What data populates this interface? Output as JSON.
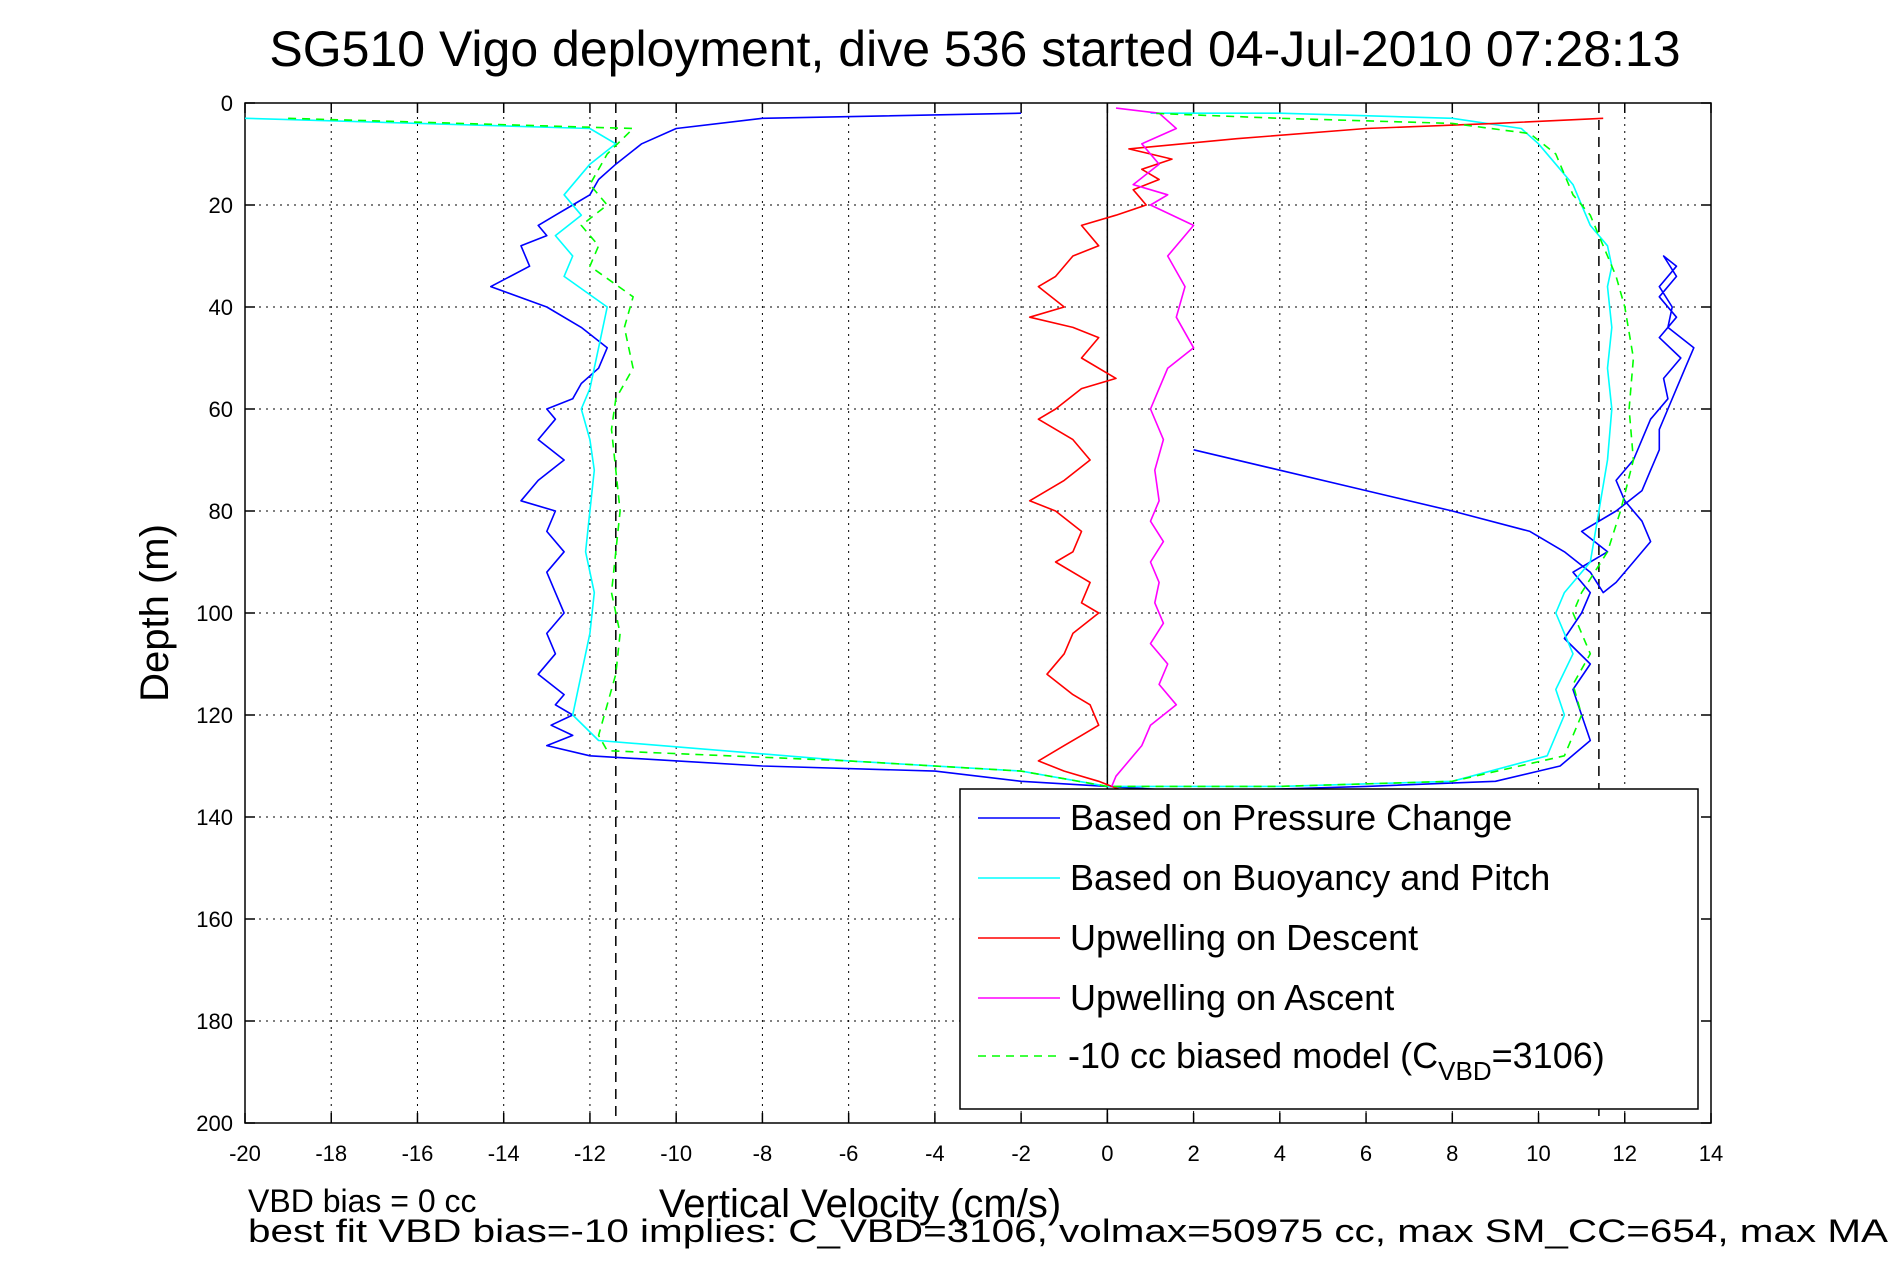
{
  "chart_data": {
    "type": "line",
    "title": "SG510 Vigo deployment, dive 536 started 04-Jul-2010 07:28:13",
    "xlabel": "Vertical Velocity (cm/s)",
    "ylabel": "Depth (m)",
    "xlim": [
      -20,
      14
    ],
    "ylim": [
      0,
      200
    ],
    "y_reversed": true,
    "grid": true,
    "legend_position": "bottom-right",
    "xticks": [
      "-20",
      "-18",
      "-16",
      "-14",
      "-12",
      "-10",
      "-8",
      "-6",
      "-4",
      "-2",
      "0",
      "2",
      "4",
      "6",
      "8",
      "10",
      "12",
      "14"
    ],
    "yticks": [
      "0",
      "20",
      "40",
      "60",
      "80",
      "100",
      "120",
      "140",
      "160",
      "180",
      "200"
    ],
    "reference_lines": {
      "vertical_solid_x": 0,
      "vertical_dashed_x": [
        -11.4,
        11.4
      ],
      "dashed_color": "#000000"
    },
    "series": [
      {
        "name": "Based on Pressure Change",
        "color": "#0000ff",
        "style": "solid",
        "x": [
          -2,
          -8,
          -10,
          -10.8,
          -11.4,
          -11.8,
          -12.0,
          -12.4,
          -12.8,
          -13.2,
          -13.0,
          -13.6,
          -13.4,
          -14.3,
          -13.0,
          -12.2,
          -11.6,
          -11.8,
          -12.2,
          -12.4,
          -13.0,
          -12.8,
          -13.2,
          -12.6,
          -13.2,
          -13.6,
          -12.8,
          -13.0,
          -12.6,
          -13.0,
          -12.8,
          -12.6,
          -13.0,
          -12.8,
          -13.2,
          -12.6,
          -12.8,
          -12.4,
          -12.9,
          -12.4,
          -13.0,
          -12.0,
          -8.0,
          -4.0,
          -2.0,
          0,
          2,
          6,
          9,
          10.5,
          11.2,
          11.0,
          10.8,
          11.2,
          10.6,
          11.0,
          11.2,
          10.8,
          11.6,
          11.0,
          11.8,
          12.4,
          12.6,
          12.8,
          12.8,
          13.0,
          13.2,
          13.4,
          13.6,
          13.0,
          13.1,
          12.8,
          13.2,
          12.9,
          13.2,
          12.8,
          13.2,
          12.8,
          13.3,
          12.9,
          13.0,
          12.6,
          12.4,
          12.2,
          11.8,
          12.0,
          12.4,
          12.6,
          12.2,
          11.8,
          11.5,
          11.2,
          10.6,
          9.8,
          8.0,
          6.0,
          4.0,
          2.0
        ],
        "y": [
          2,
          3,
          5,
          8,
          12,
          15,
          18,
          20,
          22,
          24,
          26,
          28,
          32,
          36,
          40,
          44,
          48,
          52,
          55,
          58,
          60,
          62,
          66,
          70,
          74,
          78,
          80,
          84,
          88,
          92,
          96,
          100,
          104,
          108,
          112,
          116,
          118,
          120,
          122,
          124,
          126,
          128,
          130,
          131,
          133,
          134,
          135,
          134,
          133,
          130,
          125,
          120,
          115,
          110,
          105,
          100,
          96,
          92,
          88,
          84,
          80,
          76,
          72,
          68,
          64,
          60,
          56,
          52,
          48,
          44,
          40,
          36,
          32,
          30,
          34,
          38,
          42,
          46,
          50,
          54,
          58,
          62,
          66,
          70,
          74,
          78,
          82,
          86,
          90,
          94,
          96,
          92,
          88,
          84,
          80,
          76,
          72,
          68
        ]
      },
      {
        "name": "Based on Buoyancy and Pitch",
        "color": "#00ffff",
        "style": "solid",
        "x": [
          -20.0,
          -12.0,
          -11.4,
          -12.0,
          -12.6,
          -12.2,
          -12.8,
          -12.4,
          -12.6,
          -11.6,
          -11.8,
          -12.0,
          -12.2,
          -12.0,
          -11.9,
          -12.0,
          -12.1,
          -11.9,
          -12.0,
          -12.2,
          -12.4,
          -11.8,
          -6.0,
          -2.0,
          0,
          4,
          8,
          10.2,
          10.6,
          10.4,
          10.8,
          10.4,
          10.6,
          11.2,
          11.4,
          11.6,
          11.7,
          11.6,
          11.7,
          11.6,
          11.7,
          11.6,
          11.2,
          11.0,
          10.8,
          10.4,
          10.0,
          9.6,
          8.0,
          4.0,
          1.0
        ],
        "y": [
          3,
          5,
          8,
          12,
          18,
          22,
          26,
          30,
          34,
          40,
          48,
          56,
          60,
          66,
          72,
          80,
          88,
          96,
          104,
          112,
          120,
          125,
          129,
          131,
          134,
          134,
          133,
          128,
          120,
          115,
          108,
          100,
          96,
          90,
          80,
          70,
          60,
          52,
          44,
          36,
          32,
          28,
          24,
          20,
          16,
          12,
          8,
          5,
          3,
          2,
          2
        ]
      },
      {
        "name": "Upwelling on Descent",
        "color": "#ff0000",
        "style": "solid",
        "x": [
          11.5,
          9.0,
          6.0,
          3.0,
          0.5,
          1.5,
          0.8,
          1.2,
          0.6,
          0.9,
          0.2,
          -0.6,
          -0.2,
          -0.8,
          -1.2,
          -1.6,
          -1.0,
          -1.8,
          -0.8,
          -0.2,
          -0.6,
          0.2,
          -0.6,
          -1.2,
          -1.6,
          -0.8,
          -0.4,
          -1.0,
          -1.8,
          -1.2,
          -0.6,
          -0.8,
          -1.2,
          -0.4,
          -0.6,
          -0.2,
          -0.8,
          -1.0,
          -1.4,
          -0.8,
          -0.4,
          -0.2,
          -0.6,
          -1.0,
          -1.6,
          -1.0,
          -0.2,
          0.4,
          0.2
        ],
        "y": [
          3,
          4,
          5,
          7,
          9,
          11,
          13,
          15,
          17,
          20,
          22,
          24,
          28,
          30,
          34,
          36,
          40,
          42,
          44,
          46,
          50,
          54,
          56,
          60,
          62,
          66,
          70,
          74,
          78,
          80,
          84,
          88,
          90,
          94,
          98,
          100,
          104,
          108,
          112,
          116,
          118,
          122,
          124,
          126,
          129,
          131,
          133,
          135,
          136
        ]
      },
      {
        "name": "Upwelling on Ascent",
        "color": "#ff00ff",
        "style": "solid",
        "x": [
          0.2,
          1.2,
          1.6,
          0.8,
          1.2,
          0.6,
          1.4,
          1.0,
          2.0,
          1.4,
          1.8,
          1.6,
          2.0,
          1.4,
          1.2,
          1.0,
          1.3,
          1.1,
          1.2,
          1.0,
          1.3,
          1.0,
          1.2,
          1.1,
          1.3,
          1.0,
          1.4,
          1.2,
          1.6,
          1.0,
          0.8,
          0.4,
          0.2,
          0.1
        ],
        "y": [
          1,
          2,
          5,
          8,
          12,
          16,
          18,
          20,
          24,
          30,
          36,
          42,
          48,
          52,
          56,
          60,
          66,
          72,
          78,
          82,
          86,
          90,
          94,
          98,
          102,
          106,
          110,
          114,
          118,
          122,
          126,
          130,
          132,
          134
        ]
      },
      {
        "name": "-10 cc biased model (C_VBD=3106)",
        "color": "#00ff00",
        "style": "dashed",
        "x": [
          -19.0,
          -11.0,
          -11.6,
          -12.0,
          -11.6,
          -12.2,
          -11.8,
          -12.0,
          -11.0,
          -11.2,
          -11.0,
          -11.4,
          -11.5,
          -11.4,
          -11.3,
          -11.4,
          -11.5,
          -11.3,
          -11.4,
          -11.6,
          -11.8,
          -11.6,
          -6.0,
          -2.0,
          0,
          4,
          8,
          10.6,
          11.0,
          10.8,
          11.2,
          10.8,
          11.0,
          11.6,
          11.9,
          12.2,
          12.1,
          12.2,
          12.0,
          11.8,
          11.6,
          11.4,
          11.2,
          10.8,
          10.6,
          10.4,
          9.8,
          8.0,
          4.0,
          1.0
        ],
        "y": [
          3,
          5,
          10,
          16,
          20,
          24,
          28,
          32,
          38,
          44,
          52,
          58,
          64,
          72,
          80,
          88,
          96,
          104,
          112,
          118,
          124,
          127,
          129,
          131,
          134,
          134,
          133,
          128,
          120,
          114,
          108,
          100,
          96,
          88,
          80,
          70,
          60,
          50,
          40,
          34,
          30,
          26,
          22,
          18,
          14,
          10,
          6,
          4,
          3,
          2
        ]
      }
    ]
  },
  "legend": {
    "items": [
      {
        "label": "Based on Pressure Change"
      },
      {
        "label": "Based on Buoyancy and Pitch"
      },
      {
        "label": "Upwelling on Descent"
      },
      {
        "label": "Upwelling on Ascent"
      },
      {
        "label_main": "-10 cc biased model (C",
        "label_sub": "VBD",
        "label_tail": "=3106)"
      }
    ]
  },
  "notes": {
    "line1": "VBD bias = 0 cc",
    "line2": "best fit VBD bias=-10 implies: C_VBD=3106, volmax=50975 cc, max SM_CC=654, max MA"
  }
}
